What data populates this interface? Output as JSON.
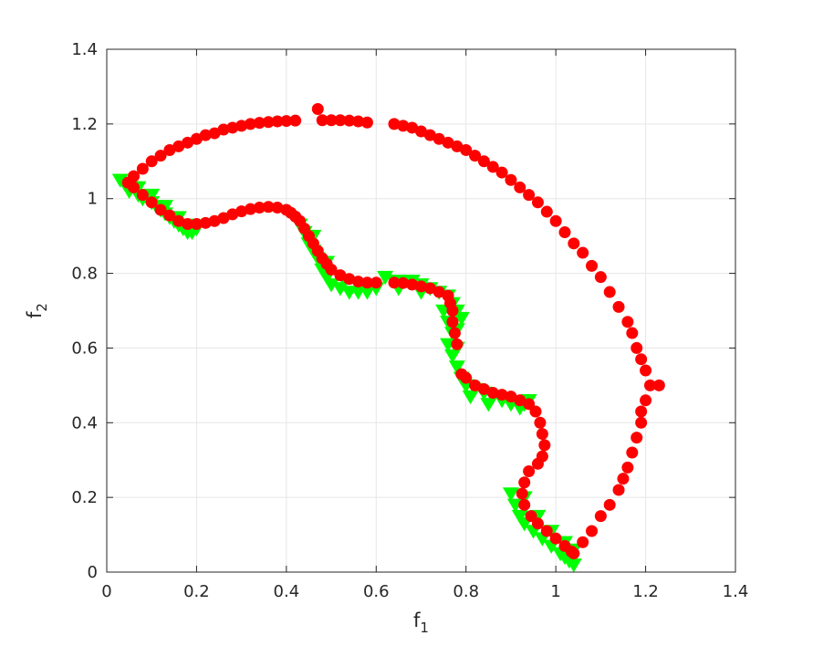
{
  "chart_data": {
    "type": "scatter",
    "xlabel": "f",
    "xlabel_subscript": "1",
    "ylabel": "f",
    "ylabel_subscript": "2",
    "xlim": [
      0,
      1.4
    ],
    "ylim": [
      0,
      1.4
    ],
    "xticks": [
      "0",
      "0.2",
      "0.4",
      "0.6",
      "0.8",
      "1",
      "1.2",
      "1.4"
    ],
    "yticks": [
      "0",
      "0.2",
      "0.4",
      "0.6",
      "0.8",
      "1",
      "1.2",
      "1.4"
    ],
    "grid": true,
    "series": [
      {
        "marker": "triangle-down",
        "color": "#00ff00",
        "points": [
          [
            0.03,
            1.05
          ],
          [
            0.04,
            1.04
          ],
          [
            0.05,
            1.02
          ],
          [
            0.06,
            1.03
          ],
          [
            0.07,
            1.01
          ],
          [
            0.08,
            1.0
          ],
          [
            0.09,
            1.0
          ],
          [
            0.1,
            0.99
          ],
          [
            0.11,
            0.98
          ],
          [
            0.12,
            0.97
          ],
          [
            0.13,
            0.96
          ],
          [
            0.14,
            0.95
          ],
          [
            0.15,
            0.94
          ],
          [
            0.16,
            0.93
          ],
          [
            0.17,
            0.92
          ],
          [
            0.18,
            0.91
          ],
          [
            0.19,
            0.91
          ],
          [
            0.2,
            0.92
          ],
          [
            0.07,
            1.03
          ],
          [
            0.1,
            1.01
          ],
          [
            0.13,
            0.98
          ],
          [
            0.16,
            0.95
          ],
          [
            0.19,
            0.93
          ],
          [
            0.43,
            0.93
          ],
          [
            0.44,
            0.91
          ],
          [
            0.45,
            0.88
          ],
          [
            0.46,
            0.86
          ],
          [
            0.47,
            0.84
          ],
          [
            0.48,
            0.81
          ],
          [
            0.49,
            0.79
          ],
          [
            0.5,
            0.77
          ],
          [
            0.52,
            0.76
          ],
          [
            0.54,
            0.75
          ],
          [
            0.56,
            0.75
          ],
          [
            0.58,
            0.75
          ],
          [
            0.6,
            0.76
          ],
          [
            0.46,
            0.9
          ],
          [
            0.49,
            0.83
          ],
          [
            0.53,
            0.78
          ],
          [
            0.62,
            0.79
          ],
          [
            0.64,
            0.78
          ],
          [
            0.66,
            0.78
          ],
          [
            0.68,
            0.78
          ],
          [
            0.7,
            0.77
          ],
          [
            0.72,
            0.76
          ],
          [
            0.74,
            0.75
          ],
          [
            0.76,
            0.74
          ],
          [
            0.77,
            0.72
          ],
          [
            0.78,
            0.7
          ],
          [
            0.79,
            0.68
          ],
          [
            0.65,
            0.76
          ],
          [
            0.7,
            0.75
          ],
          [
            0.75,
            0.7
          ],
          [
            0.76,
            0.67
          ],
          [
            0.77,
            0.64
          ],
          [
            0.76,
            0.61
          ],
          [
            0.77,
            0.58
          ],
          [
            0.78,
            0.65
          ],
          [
            0.78,
            0.6
          ],
          [
            0.78,
            0.55
          ],
          [
            0.79,
            0.52
          ],
          [
            0.8,
            0.5
          ],
          [
            0.82,
            0.49
          ],
          [
            0.84,
            0.48
          ],
          [
            0.86,
            0.47
          ],
          [
            0.88,
            0.46
          ],
          [
            0.9,
            0.45
          ],
          [
            0.92,
            0.44
          ],
          [
            0.93,
            0.45
          ],
          [
            0.94,
            0.46
          ],
          [
            0.81,
            0.47
          ],
          [
            0.85,
            0.45
          ],
          [
            0.9,
            0.21
          ],
          [
            0.91,
            0.18
          ],
          [
            0.92,
            0.15
          ],
          [
            0.93,
            0.13
          ],
          [
            0.95,
            0.11
          ],
          [
            0.97,
            0.09
          ],
          [
            0.99,
            0.07
          ],
          [
            1.01,
            0.05
          ],
          [
            1.02,
            0.04
          ],
          [
            1.03,
            0.03
          ],
          [
            1.04,
            0.02
          ],
          [
            0.93,
            0.2
          ],
          [
            0.96,
            0.15
          ],
          [
            0.99,
            0.11
          ],
          [
            1.02,
            0.08
          ],
          [
            1.04,
            0.06
          ]
        ]
      },
      {
        "marker": "circle",
        "color": "#ff0000",
        "points": [
          [
            0.047,
            1.043
          ],
          [
            0.06,
            1.06
          ],
          [
            0.08,
            1.08
          ],
          [
            0.1,
            1.1
          ],
          [
            0.12,
            1.115
          ],
          [
            0.14,
            1.13
          ],
          [
            0.16,
            1.14
          ],
          [
            0.18,
            1.15
          ],
          [
            0.2,
            1.16
          ],
          [
            0.22,
            1.17
          ],
          [
            0.24,
            1.175
          ],
          [
            0.26,
            1.185
          ],
          [
            0.28,
            1.19
          ],
          [
            0.3,
            1.195
          ],
          [
            0.32,
            1.2
          ],
          [
            0.34,
            1.203
          ],
          [
            0.36,
            1.205
          ],
          [
            0.38,
            1.207
          ],
          [
            0.4,
            1.208
          ],
          [
            0.42,
            1.209
          ],
          [
            0.47,
            1.24
          ],
          [
            0.48,
            1.21
          ],
          [
            0.5,
            1.21
          ],
          [
            0.52,
            1.21
          ],
          [
            0.54,
            1.209
          ],
          [
            0.56,
            1.207
          ],
          [
            0.58,
            1.204
          ],
          [
            0.64,
            1.2
          ],
          [
            0.66,
            1.195
          ],
          [
            0.68,
            1.19
          ],
          [
            0.7,
            1.18
          ],
          [
            0.72,
            1.17
          ],
          [
            0.74,
            1.16
          ],
          [
            0.76,
            1.15
          ],
          [
            0.78,
            1.14
          ],
          [
            0.8,
            1.13
          ],
          [
            0.82,
            1.115
          ],
          [
            0.84,
            1.1
          ],
          [
            0.86,
            1.085
          ],
          [
            0.88,
            1.07
          ],
          [
            0.9,
            1.05
          ],
          [
            0.92,
            1.03
          ],
          [
            0.94,
            1.01
          ],
          [
            0.96,
            0.99
          ],
          [
            0.98,
            0.965
          ],
          [
            1.0,
            0.94
          ],
          [
            1.02,
            0.91
          ],
          [
            1.04,
            0.88
          ],
          [
            1.06,
            0.855
          ],
          [
            1.08,
            0.82
          ],
          [
            1.1,
            0.79
          ],
          [
            1.12,
            0.75
          ],
          [
            1.14,
            0.71
          ],
          [
            1.16,
            0.67
          ],
          [
            1.17,
            0.64
          ],
          [
            1.18,
            0.6
          ],
          [
            1.19,
            0.57
          ],
          [
            1.2,
            0.54
          ],
          [
            1.21,
            0.5
          ],
          [
            1.23,
            0.5
          ],
          [
            1.2,
            0.46
          ],
          [
            1.19,
            0.43
          ],
          [
            1.19,
            0.4
          ],
          [
            1.18,
            0.36
          ],
          [
            1.17,
            0.32
          ],
          [
            1.16,
            0.28
          ],
          [
            1.15,
            0.25
          ],
          [
            1.14,
            0.22
          ],
          [
            1.12,
            0.18
          ],
          [
            1.1,
            0.15
          ],
          [
            1.08,
            0.11
          ],
          [
            1.06,
            0.08
          ],
          [
            1.04,
            0.05
          ],
          [
            0.06,
            1.03
          ],
          [
            0.08,
            1.01
          ],
          [
            0.1,
            0.99
          ],
          [
            0.12,
            0.97
          ],
          [
            0.14,
            0.955
          ],
          [
            0.16,
            0.94
          ],
          [
            0.18,
            0.932
          ],
          [
            0.2,
            0.932
          ],
          [
            0.22,
            0.935
          ],
          [
            0.24,
            0.94
          ],
          [
            0.26,
            0.948
          ],
          [
            0.28,
            0.958
          ],
          [
            0.3,
            0.966
          ],
          [
            0.32,
            0.972
          ],
          [
            0.34,
            0.976
          ],
          [
            0.36,
            0.978
          ],
          [
            0.38,
            0.976
          ],
          [
            0.4,
            0.97
          ],
          [
            0.41,
            0.962
          ],
          [
            0.42,
            0.952
          ],
          [
            0.43,
            0.94
          ],
          [
            0.44,
            0.92
          ],
          [
            0.45,
            0.9
          ],
          [
            0.46,
            0.88
          ],
          [
            0.47,
            0.86
          ],
          [
            0.48,
            0.84
          ],
          [
            0.49,
            0.825
          ],
          [
            0.5,
            0.81
          ],
          [
            0.52,
            0.795
          ],
          [
            0.54,
            0.785
          ],
          [
            0.56,
            0.778
          ],
          [
            0.58,
            0.775
          ],
          [
            0.6,
            0.775
          ],
          [
            0.64,
            0.775
          ],
          [
            0.66,
            0.774
          ],
          [
            0.68,
            0.77
          ],
          [
            0.7,
            0.765
          ],
          [
            0.72,
            0.76
          ],
          [
            0.74,
            0.75
          ],
          [
            0.76,
            0.74
          ],
          [
            0.765,
            0.72
          ],
          [
            0.77,
            0.7
          ],
          [
            0.77,
            0.67
          ],
          [
            0.775,
            0.64
          ],
          [
            0.78,
            0.61
          ],
          [
            0.79,
            0.53
          ],
          [
            0.8,
            0.52
          ],
          [
            0.82,
            0.5
          ],
          [
            0.84,
            0.49
          ],
          [
            0.86,
            0.48
          ],
          [
            0.88,
            0.475
          ],
          [
            0.9,
            0.47
          ],
          [
            0.92,
            0.46
          ],
          [
            0.94,
            0.45
          ],
          [
            0.955,
            0.43
          ],
          [
            0.965,
            0.4
          ],
          [
            0.97,
            0.37
          ],
          [
            0.975,
            0.34
          ],
          [
            0.97,
            0.31
          ],
          [
            0.96,
            0.29
          ],
          [
            0.94,
            0.27
          ],
          [
            0.93,
            0.24
          ],
          [
            0.925,
            0.21
          ],
          [
            0.93,
            0.18
          ],
          [
            0.945,
            0.15
          ],
          [
            0.96,
            0.13
          ],
          [
            0.98,
            0.11
          ],
          [
            1.0,
            0.09
          ],
          [
            1.02,
            0.07
          ],
          [
            1.035,
            0.055
          ]
        ]
      }
    ]
  }
}
